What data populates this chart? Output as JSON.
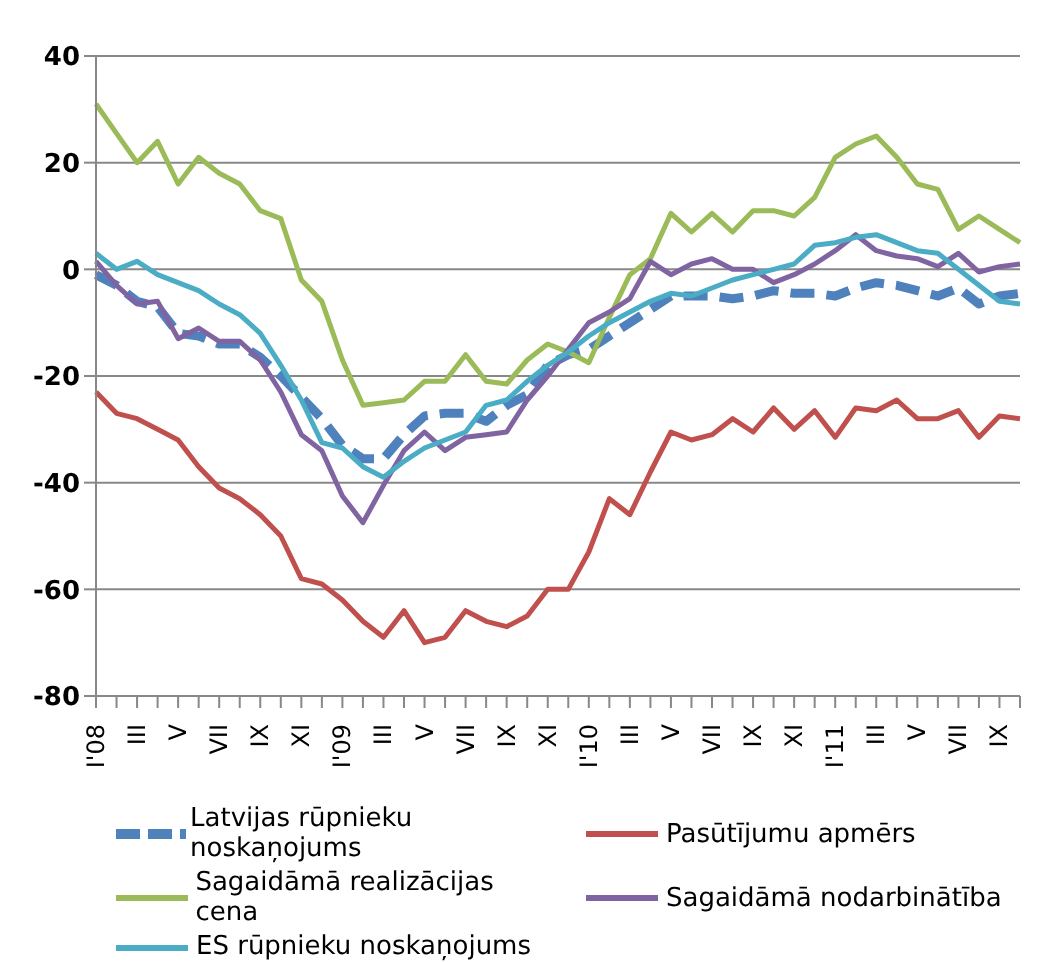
{
  "chart_data": {
    "type": "line",
    "categories": [
      "I'08",
      null,
      "III",
      null,
      "V",
      null,
      "VII",
      null,
      "IX",
      null,
      "XI",
      null,
      "I'09",
      null,
      "III",
      null,
      "V",
      null,
      "VII",
      null,
      "IX",
      null,
      "XI",
      null,
      "I'10",
      null,
      "III",
      null,
      "V",
      null,
      "VII",
      null,
      "IX",
      null,
      "XI",
      null,
      "I'11",
      null,
      "III",
      null,
      "V",
      null,
      "VII",
      null,
      "IX",
      null
    ],
    "series": [
      {
        "name": "Latvijas rūpnieku noskaņojums",
        "color": "#4f81bd",
        "line_style": "dashed",
        "values": [
          -1,
          -3,
          -6,
          -7,
          -12,
          -12.5,
          -14,
          -14,
          -16.5,
          -20,
          -24,
          -28,
          -33,
          -35.5,
          -35.5,
          -31,
          -27.5,
          -27,
          -27,
          -28.5,
          -25.5,
          -23.5,
          -18,
          -16,
          -15,
          -12.5,
          -10,
          -7.5,
          -5,
          -5,
          -5,
          -5.5,
          -5,
          -4,
          -4.5,
          -4.5,
          -5,
          -3.5,
          -2.5,
          -3,
          -4,
          -5,
          -3.5,
          -6.5,
          -5,
          -4.5
        ]
      },
      {
        "name": "Pasūtījumu apmērs",
        "color": "#c0504d",
        "values": [
          -23,
          -27,
          -28,
          -30,
          -32,
          -37,
          -41,
          -43,
          -46,
          -50,
          -58,
          -59,
          -62,
          -66,
          -69,
          -64,
          -70,
          -69,
          -64,
          -66,
          -67,
          -65,
          -60,
          -60,
          -53,
          -43,
          -46,
          -38,
          -30.5,
          -32,
          -31,
          -28,
          -30.5,
          -26,
          -30,
          -26.5,
          -31.5,
          -26,
          -26.5,
          -24.5,
          -28,
          -28,
          -26.5,
          -31.5,
          -27.5,
          -28
        ]
      },
      {
        "name": "Sagaidāmā realizācijas cena",
        "color": "#9bbb59",
        "values": [
          31,
          25.5,
          20,
          24,
          16,
          21,
          18,
          16,
          11,
          9.5,
          -2,
          -6,
          -17,
          -25.5,
          -25,
          -24.5,
          -21,
          -21,
          -16,
          -21,
          -21.5,
          -17,
          -14,
          -15.5,
          -17.5,
          -9,
          -1,
          2,
          10.5,
          7,
          10.5,
          7,
          11,
          11,
          10,
          13.5,
          21,
          23.5,
          25,
          21,
          16,
          15,
          7.5,
          10,
          7.5,
          5
        ]
      },
      {
        "name": "Sagaidāmā nodarbinātība",
        "color": "#8064a2",
        "values": [
          1.5,
          -3,
          -6.5,
          -6,
          -13,
          -11,
          -13.5,
          -13.5,
          -17,
          -23,
          -31,
          -34,
          -42.5,
          -47.5,
          -40.5,
          -34,
          -30.5,
          -34,
          -31.5,
          -31,
          -30.5,
          -24.5,
          -20,
          -15,
          -10,
          -8,
          -5.5,
          1.5,
          -1,
          1,
          2,
          0,
          0,
          -2.5,
          -1,
          1,
          3.5,
          6.5,
          3.5,
          2.5,
          2,
          0.5,
          3,
          -0.5,
          0.5,
          1
        ]
      },
      {
        "name": "ES rūpnieku noskaņojums",
        "color": "#4bacc6",
        "values": [
          3,
          0,
          1.5,
          -1,
          -2.5,
          -4,
          -6.5,
          -8.5,
          -12,
          -18,
          -24.5,
          -32.5,
          -33.5,
          -37,
          -39,
          -36,
          -33.5,
          -32,
          -30.5,
          -25.5,
          -24.5,
          -21,
          -18,
          -15.5,
          -12.5,
          -10,
          -8,
          -6,
          -4.5,
          -5,
          -3.5,
          -2,
          -1,
          0,
          1,
          4.5,
          5,
          6,
          6.5,
          5,
          3.5,
          3,
          0,
          -3,
          -6,
          -6.5
        ]
      }
    ],
    "ylim": [
      -80,
      40
    ],
    "yticks": [
      -80,
      -60,
      -40,
      -20,
      0,
      20,
      40
    ],
    "grid": "y",
    "legend": "bottom",
    "marker": "none",
    "line_style": "solid"
  }
}
